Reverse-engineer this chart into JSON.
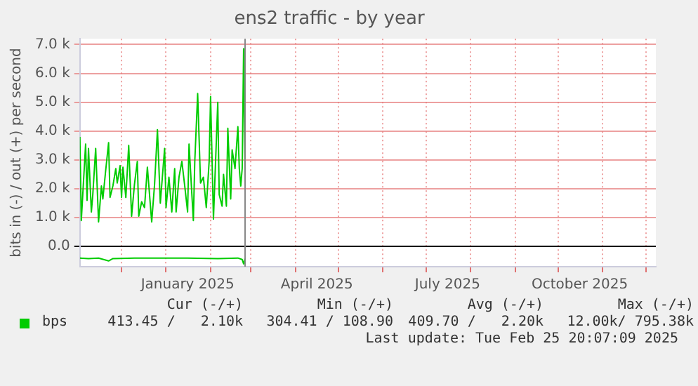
{
  "chart_data": {
    "type": "line",
    "title": "ens2 traffic - by year",
    "ylabel": "bits in (-) / out (+) per second",
    "xlim": [
      "2024-11-02",
      "2025-12-08"
    ],
    "xticks": [
      {
        "value": "2024-12-01",
        "label": null
      },
      {
        "value": "2025-01-01",
        "label": null
      },
      {
        "value": "2025-01-16",
        "label": "January 2025"
      },
      {
        "value": "2025-02-01",
        "label": null
      },
      {
        "value": "2025-03-01",
        "label": null
      },
      {
        "value": "2025-04-01",
        "label": null
      },
      {
        "value": "2025-04-16",
        "label": "April 2025"
      },
      {
        "value": "2025-05-01",
        "label": null
      },
      {
        "value": "2025-06-01",
        "label": null
      },
      {
        "value": "2025-07-01",
        "label": null
      },
      {
        "value": "2025-07-16",
        "label": "July 2025"
      },
      {
        "value": "2025-08-01",
        "label": null
      },
      {
        "value": "2025-09-01",
        "label": null
      },
      {
        "value": "2025-10-01",
        "label": null
      },
      {
        "value": "2025-10-16",
        "label": "October 2025"
      },
      {
        "value": "2025-11-01",
        "label": null
      },
      {
        "value": "2025-12-01",
        "label": null
      }
    ],
    "ylim": [
      -700,
      7200
    ],
    "yticks": [
      {
        "value": 0,
        "label": "0.0"
      },
      {
        "value": 1000,
        "label": "1.0 k"
      },
      {
        "value": 2000,
        "label": "2.0 k"
      },
      {
        "value": 3000,
        "label": "3.0 k"
      },
      {
        "value": 4000,
        "label": "4.0 k"
      },
      {
        "value": 5000,
        "label": "5.0 k"
      },
      {
        "value": 6000,
        "label": "6.0 k"
      },
      {
        "value": 7000,
        "label": "7.0 k"
      }
    ],
    "grid": true,
    "legend": "bottom left",
    "series": [
      {
        "name": "bps",
        "color": "#00cc00",
        "x": [
          "2024-11-02",
          "2024-11-03",
          "2024-11-06",
          "2024-11-07",
          "2024-11-08",
          "2024-11-10",
          "2024-11-11",
          "2024-11-13",
          "2024-11-15",
          "2024-11-17",
          "2024-11-18",
          "2024-11-20",
          "2024-11-22",
          "2024-11-23",
          "2024-11-25",
          "2024-11-27",
          "2024-11-28",
          "2024-11-30",
          "2024-12-01",
          "2024-12-02",
          "2024-12-04",
          "2024-12-06",
          "2024-12-08",
          "2024-12-10",
          "2024-12-12",
          "2024-12-13",
          "2024-12-15",
          "2024-12-17",
          "2024-12-19",
          "2024-12-22",
          "2024-12-24",
          "2024-12-26",
          "2024-12-28",
          "2024-12-31",
          "2025-01-01",
          "2025-01-03",
          "2025-01-05",
          "2025-01-07",
          "2025-01-08",
          "2025-01-10",
          "2025-01-12",
          "2025-01-14",
          "2025-01-16",
          "2025-01-17",
          "2025-01-20",
          "2025-01-21",
          "2025-01-23",
          "2025-01-25",
          "2025-01-27",
          "2025-01-29",
          "2025-01-31",
          "2025-02-01",
          "2025-02-03",
          "2025-02-06",
          "2025-02-07",
          "2025-02-09",
          "2025-02-10",
          "2025-02-12",
          "2025-02-13",
          "2025-02-15",
          "2025-02-16",
          "2025-02-18",
          "2025-02-20",
          "2025-02-21",
          "2025-02-22",
          "2025-02-23",
          "2025-02-24",
          "2025-02-25"
        ],
        "values": [
          3800,
          900,
          3550,
          1600,
          3400,
          1200,
          1800,
          3400,
          850,
          2100,
          1650,
          2650,
          3600,
          1700,
          2100,
          2700,
          2200,
          2800,
          1700,
          2750,
          1700,
          3500,
          1050,
          2150,
          2950,
          1050,
          1550,
          1350,
          2750,
          850,
          2150,
          4050,
          1500,
          3400,
          1350,
          2400,
          1200,
          2700,
          1200,
          2400,
          2950,
          2100,
          1200,
          3550,
          900,
          2950,
          5300,
          2200,
          2400,
          1350,
          2950,
          5200,
          950,
          5000,
          1800,
          1400,
          2500,
          1400,
          4100,
          1650,
          3350,
          2700,
          4150,
          2700,
          2100,
          2700,
          6850,
          2100
        ]
      },
      {
        "color": "#00cc00",
        "x": [
          "2024-11-02",
          "2024-11-08",
          "2024-11-15",
          "2024-11-22",
          "2024-11-25",
          "2024-12-10",
          "2024-12-26",
          "2025-01-16",
          "2025-02-06",
          "2025-02-20",
          "2025-02-23",
          "2025-02-24",
          "2025-02-25"
        ],
        "values": [
          -400,
          -420,
          -400,
          -500,
          -420,
          -400,
          -400,
          -400,
          -420,
          -400,
          -450,
          -600,
          -400
        ]
      }
    ],
    "ref_lines": [
      {
        "axis": "x",
        "value": "2025-02-25",
        "color": "#888888"
      }
    ],
    "annotations": [
      "Cur (-/+)",
      "Min (-/+)",
      "Avg (-/+)",
      "Max (-/+)",
      "413.45 /   2.10k",
      "304.41 / 108.90",
      "409.70 /   2.20k",
      "12.00k/ 795.38k",
      "Last update: Tue Feb 25 20:07:09 2025"
    ]
  }
}
